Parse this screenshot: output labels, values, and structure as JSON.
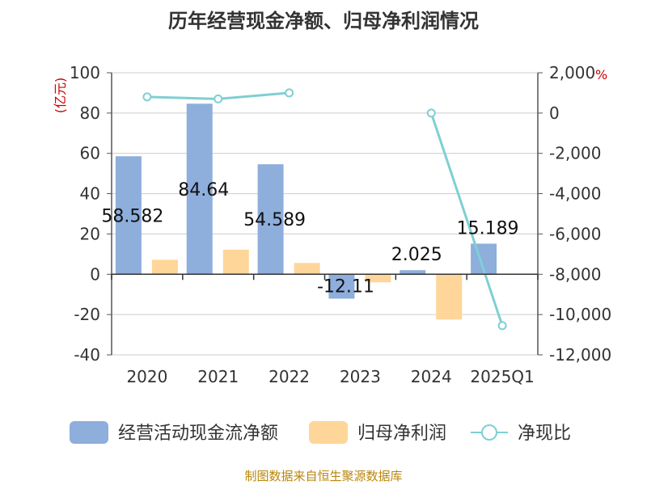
{
  "chart_data": {
    "type": "bar",
    "title": "历年经营现金净额、归母净利润情况",
    "categories": [
      "2020",
      "2021",
      "2022",
      "2023",
      "2024",
      "2025Q1"
    ],
    "y_left": {
      "unit": "(亿元)",
      "ticks": [
        "100",
        "80",
        "60",
        "40",
        "20",
        "0",
        "-20",
        "-40"
      ],
      "ylim": [
        -40,
        100
      ]
    },
    "y_right": {
      "unit": "%",
      "ticks": [
        "2,000",
        "0",
        "-2,000",
        "-4,000",
        "-6,000",
        "-8,000",
        "-10,000",
        "-12,000"
      ],
      "ylim": [
        -12000,
        2000
      ]
    },
    "series": [
      {
        "name": "经营活动现金流净额",
        "type": "bar",
        "axis": "left",
        "color": "#8eaedc",
        "values": [
          58.582,
          84.64,
          54.589,
          -12.11,
          2.025,
          15.189
        ],
        "labels": [
          "58.582",
          "84.64",
          "54.589",
          "-12.11",
          "2.025",
          "15.189"
        ]
      },
      {
        "name": "归母净利润",
        "type": "bar",
        "axis": "left",
        "color": "#ffd699",
        "values": [
          7.2,
          12.2,
          5.6,
          -4.0,
          -22.5,
          null
        ]
      },
      {
        "name": "净现比",
        "type": "line",
        "axis": "right",
        "color": "#7fcfd3",
        "values": [
          800,
          700,
          1000,
          null,
          0,
          -10550
        ]
      }
    ],
    "source": "制图数据来自恒生聚源数据库"
  }
}
